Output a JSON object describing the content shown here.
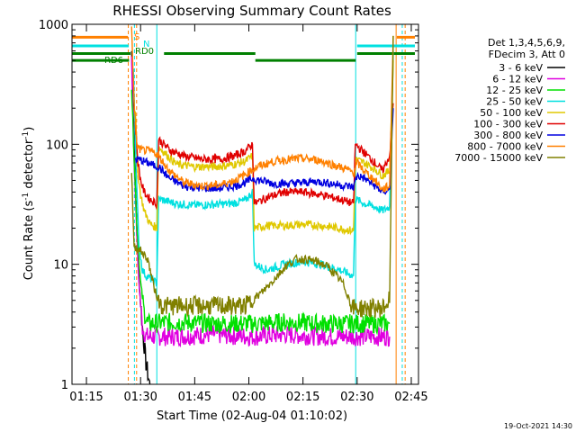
{
  "chart_data": {
    "type": "line",
    "title": "RHESSI Observing Summary Count Rates",
    "xlabel": "Start Time (02-Aug-04 01:10:02)",
    "ylabel_main": "Count Rate (s",
    "ylabel_sup1": "-1",
    "ylabel_mid": " detector",
    "ylabel_sup2": "-1",
    "ylabel_end": ")",
    "yscale": "log",
    "ylim": [
      1,
      1000
    ],
    "xlim_minutes": [
      71,
      167
    ],
    "x_ticks": [
      {
        "t": 75,
        "label": "01:15"
      },
      {
        "t": 90,
        "label": "01:30"
      },
      {
        "t": 105,
        "label": "01:45"
      },
      {
        "t": 120,
        "label": "02:00"
      },
      {
        "t": 135,
        "label": "02:15"
      },
      {
        "t": 150,
        "label": "02:30"
      },
      {
        "t": 165,
        "label": "02:45"
      }
    ],
    "y_ticks": [
      {
        "v": 1,
        "label": "1"
      },
      {
        "v": 10,
        "label": "10"
      },
      {
        "v": 100,
        "label": "100"
      },
      {
        "v": 1000,
        "label": "1000"
      }
    ],
    "legend_header": [
      "Det 1,3,4,5,6,9,",
      "FDecim 3, Att 0"
    ],
    "series": [
      {
        "name": "3 - 6 keV",
        "color": "#000000",
        "points": [
          [
            87.5,
            600
          ],
          [
            88.6,
            40
          ],
          [
            89.5,
            8
          ],
          [
            90.5,
            3
          ],
          [
            91.5,
            1.5
          ],
          [
            92.5,
            1.0
          ],
          [
            93,
            1
          ]
        ]
      },
      {
        "name": "6 - 12 keV",
        "color": "#e000e0",
        "points": [
          [
            87.5,
            500
          ],
          [
            88.3,
            60
          ],
          [
            89.4,
            8
          ],
          [
            90.5,
            3
          ],
          [
            91.5,
            2.5
          ],
          [
            100,
            2.5
          ],
          [
            110,
            2.6
          ],
          [
            120,
            2.5
          ],
          [
            122,
            2.5
          ],
          [
            130,
            2.6
          ],
          [
            140,
            2.5
          ],
          [
            150,
            2.5
          ],
          [
            155,
            2.5
          ],
          [
            159,
            2.5
          ]
        ]
      },
      {
        "name": "12 - 25 keV",
        "color": "#00e000",
        "points": [
          [
            87.5,
            300
          ],
          [
            88.2,
            80
          ],
          [
            89,
            20
          ],
          [
            90,
            7
          ],
          [
            91,
            4
          ],
          [
            92,
            3.2
          ],
          [
            100,
            3.3
          ],
          [
            110,
            3.2
          ],
          [
            120,
            3.2
          ],
          [
            122,
            3.2
          ],
          [
            130,
            3.3
          ],
          [
            140,
            3.2
          ],
          [
            150,
            3.2
          ],
          [
            159,
            3.2
          ]
        ]
      },
      {
        "name": "25 - 50 keV",
        "color": "#00e0e0",
        "points": [
          [
            88,
            400
          ],
          [
            88.8,
            60
          ],
          [
            89.5,
            15
          ],
          [
            90.5,
            9
          ],
          [
            91.5,
            8
          ],
          [
            93,
            7.5
          ],
          [
            94.5,
            7
          ],
          [
            95,
            35
          ],
          [
            100,
            32
          ],
          [
            105,
            31
          ],
          [
            110,
            31.5
          ],
          [
            115,
            32
          ],
          [
            119,
            34
          ],
          [
            121,
            40
          ],
          [
            121.5,
            10
          ],
          [
            125,
            9
          ],
          [
            130,
            10
          ],
          [
            135,
            10.5
          ],
          [
            140,
            10
          ],
          [
            145,
            9
          ],
          [
            149,
            8
          ],
          [
            149.5,
            35
          ],
          [
            152,
            32
          ],
          [
            155,
            30
          ],
          [
            157,
            28
          ],
          [
            159,
            30
          ],
          [
            160,
            600
          ]
        ]
      },
      {
        "name": "50 - 100 keV",
        "color": "#e0c800",
        "points": [
          [
            88.5,
            200
          ],
          [
            89.2,
            60
          ],
          [
            90,
            38
          ],
          [
            91,
            28
          ],
          [
            92.5,
            22
          ],
          [
            94.5,
            20
          ],
          [
            95,
            95
          ],
          [
            100,
            68
          ],
          [
            105,
            65
          ],
          [
            110,
            65
          ],
          [
            115,
            67
          ],
          [
            119,
            72
          ],
          [
            121,
            80
          ],
          [
            121.5,
            20
          ],
          [
            125,
            21
          ],
          [
            130,
            21
          ],
          [
            135,
            21.5
          ],
          [
            140,
            21
          ],
          [
            145,
            20
          ],
          [
            149,
            19
          ],
          [
            149.5,
            75
          ],
          [
            152,
            70
          ],
          [
            155,
            62
          ],
          [
            157,
            55
          ],
          [
            159,
            60
          ],
          [
            160,
            500
          ]
        ]
      },
      {
        "name": "100 - 300 keV",
        "color": "#e00000",
        "points": [
          [
            88.5,
            150
          ],
          [
            89.3,
            70
          ],
          [
            90,
            50
          ],
          [
            91,
            40
          ],
          [
            92.5,
            35
          ],
          [
            94.5,
            32
          ],
          [
            95,
            110
          ],
          [
            98,
            90
          ],
          [
            102,
            80
          ],
          [
            107,
            75
          ],
          [
            112,
            75
          ],
          [
            116,
            80
          ],
          [
            119,
            88
          ],
          [
            121,
            100
          ],
          [
            121.5,
            32
          ],
          [
            125,
            36
          ],
          [
            130,
            40
          ],
          [
            135,
            40
          ],
          [
            140,
            38
          ],
          [
            145,
            35
          ],
          [
            149,
            32
          ],
          [
            149.5,
            100
          ],
          [
            152,
            85
          ],
          [
            155,
            70
          ],
          [
            157,
            60
          ],
          [
            159,
            80
          ],
          [
            160,
            220
          ]
        ]
      },
      {
        "name": "300 - 800 keV",
        "color": "#0000e0",
        "points": [
          [
            88.5,
            75
          ],
          [
            90,
            74
          ],
          [
            92,
            70
          ],
          [
            94,
            66
          ],
          [
            95,
            65
          ],
          [
            98,
            52
          ],
          [
            102,
            45
          ],
          [
            107,
            43
          ],
          [
            112,
            43
          ],
          [
            116,
            45
          ],
          [
            119,
            48
          ],
          [
            121,
            52
          ],
          [
            123,
            50
          ],
          [
            127,
            47
          ],
          [
            131,
            47
          ],
          [
            135,
            48
          ],
          [
            139,
            49
          ],
          [
            143,
            47
          ],
          [
            147,
            45
          ],
          [
            149,
            44
          ],
          [
            150,
            55
          ],
          [
            152,
            52
          ],
          [
            155,
            45
          ],
          [
            157,
            40
          ],
          [
            159,
            42
          ],
          [
            160,
            200
          ]
        ]
      },
      {
        "name": "800 - 7000 keV",
        "color": "#ff8000",
        "points": [
          [
            87.5,
            900
          ],
          [
            88.3,
            200
          ],
          [
            89,
            95
          ],
          [
            90,
            90
          ],
          [
            92,
            88
          ],
          [
            94,
            85
          ],
          [
            95,
            80
          ],
          [
            98,
            60
          ],
          [
            102,
            48
          ],
          [
            107,
            45
          ],
          [
            112,
            46
          ],
          [
            116,
            50
          ],
          [
            119,
            56
          ],
          [
            121,
            62
          ],
          [
            123,
            66
          ],
          [
            127,
            72
          ],
          [
            131,
            75
          ],
          [
            135,
            76
          ],
          [
            139,
            74
          ],
          [
            143,
            68
          ],
          [
            147,
            62
          ],
          [
            149,
            58
          ],
          [
            150,
            70
          ],
          [
            152,
            60
          ],
          [
            155,
            50
          ],
          [
            157,
            42
          ],
          [
            159,
            45
          ],
          [
            160,
            800
          ]
        ]
      },
      {
        "name": "7000 - 15000 keV",
        "color": "#808000",
        "points": [
          [
            87.5,
            60
          ],
          [
            88.2,
            14
          ],
          [
            90,
            13
          ],
          [
            92,
            11
          ],
          [
            93,
            8
          ],
          [
            94,
            6
          ],
          [
            95,
            5
          ],
          [
            96,
            4.5
          ],
          [
            100,
            4.5
          ],
          [
            105,
            4.5
          ],
          [
            110,
            4.5
          ],
          [
            115,
            4.5
          ],
          [
            119,
            4.5
          ],
          [
            121,
            5
          ],
          [
            124,
            6
          ],
          [
            127,
            7.5
          ],
          [
            130,
            9.5
          ],
          [
            133,
            11
          ],
          [
            136,
            11
          ],
          [
            139,
            10.5
          ],
          [
            142,
            9.5
          ],
          [
            146,
            7
          ],
          [
            148,
            5
          ],
          [
            149,
            4.3
          ],
          [
            153,
            4.3
          ],
          [
            157,
            4.3
          ],
          [
            159,
            5
          ],
          [
            160,
            800
          ]
        ]
      }
    ],
    "annotations": [
      {
        "text": "S",
        "color": "#ff8000"
      },
      {
        "text": "N",
        "color": "#00e0e0"
      },
      {
        "text": "RD0",
        "color": "#008000"
      },
      {
        "text": "RD6",
        "color": "#008000"
      }
    ],
    "flag_bars": [
      {
        "color": "#ff8000",
        "value": 780,
        "segments": [
          [
            71,
            86.5
          ],
          [
            161,
            166
          ]
        ]
      },
      {
        "color": "#00e0e0",
        "value": 660,
        "segments": [
          [
            71,
            86.7
          ],
          [
            150,
            166
          ]
        ]
      },
      {
        "color": "#008000",
        "value": 570,
        "segments": [
          [
            71,
            87.2
          ],
          [
            96.5,
            121.8
          ],
          [
            150,
            166
          ]
        ]
      },
      {
        "color": "#008000",
        "value": 500,
        "segments": [
          [
            71,
            86.8
          ],
          [
            121.8,
            149.6
          ]
        ]
      }
    ],
    "vlines": [
      {
        "t": 86.6,
        "color": "#ff8000",
        "dashed": true
      },
      {
        "t": 88.3,
        "color": "#00e0e0",
        "dashed": true
      },
      {
        "t": 88.9,
        "color": "#ff8000",
        "dashed": true
      },
      {
        "t": 94.5,
        "color": "#00e0e0",
        "dashed": false
      },
      {
        "t": 149.6,
        "color": "#00e0e0",
        "dashed": false
      },
      {
        "t": 160.8,
        "color": "#ff8000",
        "dashed": false
      },
      {
        "t": 162.5,
        "color": "#00e0e0",
        "dashed": true
      },
      {
        "t": 163.3,
        "color": "#ff8000",
        "dashed": true
      }
    ],
    "timestamp": "19-Oct-2021 14:30"
  }
}
